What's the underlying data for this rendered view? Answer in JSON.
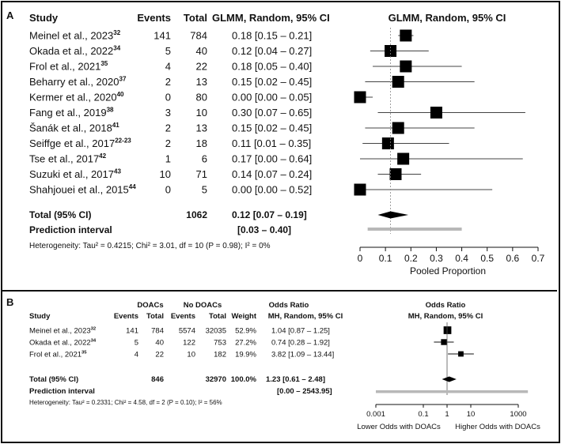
{
  "chart_data": [
    {
      "type": "forest",
      "panel_label": "A",
      "title": "GLMM, Random, 95% CI",
      "headers": {
        "study": "Study",
        "events": "Events",
        "total": "Total",
        "ci": "GLMM, Random, 95% CI"
      },
      "xlabel": "Pooled Proportion",
      "xlim": [
        0,
        0.7
      ],
      "xticks": [
        "0",
        "0.1",
        "0.2",
        "0.3",
        "0.4",
        "0.5",
        "0.6",
        "0.7"
      ],
      "studies": [
        {
          "name": "Meinel et al., 2023",
          "ref": "32",
          "events": "141",
          "total": "784",
          "ci_text": "0.18 [0.15 – 0.21]",
          "est": 0.18,
          "lo": 0.15,
          "hi": 0.21,
          "w": 1.0
        },
        {
          "name": "Okada et al., 2022",
          "ref": "34",
          "events": "5",
          "total": "40",
          "ci_text": "0.12 [0.04 – 0.27]",
          "est": 0.12,
          "lo": 0.04,
          "hi": 0.27,
          "w": 1.0
        },
        {
          "name": "Frol et al., 2021",
          "ref": "35",
          "events": "4",
          "total": "22",
          "ci_text": "0.18 [0.05 – 0.40]",
          "est": 0.18,
          "lo": 0.05,
          "hi": 0.4,
          "w": 1.0
        },
        {
          "name": "Beharry et al., 2020",
          "ref": "37",
          "events": "2",
          "total": "13",
          "ci_text": "0.15 [0.02 – 0.45]",
          "est": 0.15,
          "lo": 0.02,
          "hi": 0.45,
          "w": 1.0
        },
        {
          "name": "Kermer et al., 2020",
          "ref": "40",
          "events": "0",
          "total": "80",
          "ci_text": "0.00 [0.00 – 0.05]",
          "est": 0.0,
          "lo": 0.0,
          "hi": 0.05,
          "w": 1.0
        },
        {
          "name": "Fang et al., 2019",
          "ref": "38",
          "events": "3",
          "total": "10",
          "ci_text": "0.30 [0.07 – 0.65]",
          "est": 0.3,
          "lo": 0.07,
          "hi": 0.65,
          "w": 1.0
        },
        {
          "name": "Šanák et al., 2018",
          "ref": "41",
          "events": "2",
          "total": "13",
          "ci_text": "0.15 [0.02 – 0.45]",
          "est": 0.15,
          "lo": 0.02,
          "hi": 0.45,
          "w": 1.0
        },
        {
          "name": "Seiffge et al., 2017",
          "ref": "22-23",
          "events": "2",
          "total": "18",
          "ci_text": "0.11 [0.01 – 0.35]",
          "est": 0.11,
          "lo": 0.01,
          "hi": 0.35,
          "w": 1.0
        },
        {
          "name": "Tse et al., 2017",
          "ref": "42",
          "events": "1",
          "total": "6",
          "ci_text": "0.17 [0.00 – 0.64]",
          "est": 0.17,
          "lo": 0.0,
          "hi": 0.64,
          "w": 1.0
        },
        {
          "name": "Suzuki et al., 2017",
          "ref": "43",
          "events": "10",
          "total": "71",
          "ci_text": "0.14 [0.07 – 0.24]",
          "est": 0.14,
          "lo": 0.07,
          "hi": 0.24,
          "w": 1.0
        },
        {
          "name": "Shahjouei et al., 2015",
          "ref": "44",
          "events": "0",
          "total": "5",
          "ci_text": "0.00 [0.00 – 0.52]",
          "est": 0.0,
          "lo": 0.0,
          "hi": 0.52,
          "w": 1.0
        }
      ],
      "total": {
        "label": "Total (95% CI)",
        "total": "1062",
        "ci_text": "0.12 [0.07 – 0.19]",
        "est": 0.12,
        "lo": 0.07,
        "hi": 0.19
      },
      "prediction": {
        "label": "Prediction interval",
        "ci_text": "[0.03 – 0.40]",
        "lo": 0.03,
        "hi": 0.4
      },
      "heterogeneity": "Heterogeneity: Tau² = 0.4215; Chi² = 3.01, df = 10 (P = 0.98); I² = 0%"
    },
    {
      "type": "forest",
      "panel_label": "B",
      "title": "Odds Ratio",
      "subtitle": "MH, Random, 95% CI",
      "headers": {
        "study": "Study",
        "group1": "DOACs",
        "group2": "No DOACs",
        "events": "Events",
        "total": "Total",
        "weight": "Weight",
        "or": "Odds Ratio",
        "or_sub": "MH, Random, 95% CI"
      },
      "scale": "log",
      "xlim": [
        0.001,
        1000
      ],
      "xticks": [
        "0.001",
        "0.1",
        "1",
        "10",
        "1000"
      ],
      "xlabel_left": "Lower Odds with DOACs",
      "xlabel_right": "Higher Odds with DOACs",
      "studies": [
        {
          "name": "Meinel et al., 2023",
          "ref": "32",
          "e1": "141",
          "t1": "784",
          "e2": "5574",
          "t2": "32035",
          "weight": "52.9%",
          "ci_text": "1.04 [0.87 – 1.25]",
          "est": 1.04,
          "lo": 0.87,
          "hi": 1.25,
          "w": 0.529
        },
        {
          "name": "Okada et al., 2022",
          "ref": "34",
          "e1": "5",
          "t1": "40",
          "e2": "122",
          "t2": "753",
          "weight": "27.2%",
          "ci_text": "0.74 [0.28 – 1.92]",
          "est": 0.74,
          "lo": 0.28,
          "hi": 1.92,
          "w": 0.272
        },
        {
          "name": "Frol et al., 2021",
          "ref": "35",
          "e1": "4",
          "t1": "22",
          "e2": "10",
          "t2": "182",
          "weight": "19.9%",
          "ci_text": "3.82 [1.09 – 13.44]",
          "est": 3.82,
          "lo": 1.09,
          "hi": 13.44,
          "w": 0.199
        }
      ],
      "total": {
        "label": "Total (95% CI)",
        "t1": "846",
        "t2": "32970",
        "weight": "100.0%",
        "ci_text": "1.23 [0.61 – 2.48]",
        "est": 1.23,
        "lo": 0.61,
        "hi": 2.48
      },
      "prediction": {
        "label": "Prediction interval",
        "ci_text": "[0.00 – 2543.95]",
        "lo": 0.0006,
        "hi": 2543.95
      },
      "heterogeneity": "Heterogeneity: Tau² = 0.2331; Chi² = 4.58, df = 2 (P = 0.10); I² = 56%"
    }
  ]
}
